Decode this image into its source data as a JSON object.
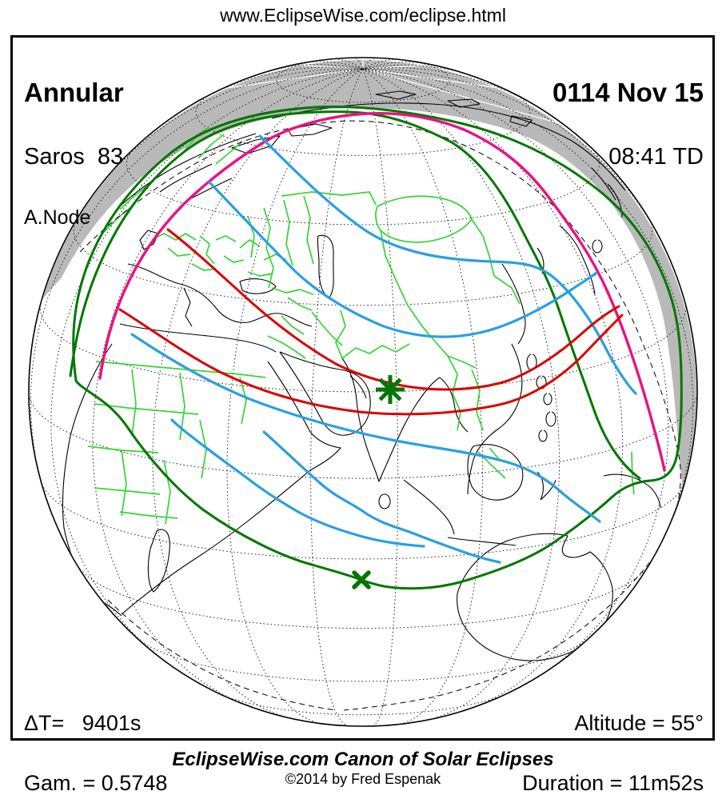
{
  "header": {
    "url": "www.EclipseWise.com/eclipse.html"
  },
  "card": {
    "eclipse_type": "Annular",
    "saros": "Saros  83",
    "node": "A.Node",
    "date": "0114 Nov 15",
    "time": "08:41 TD",
    "delta_t": "ΔT=   9401s",
    "gamma": "Gam. = 0.5748",
    "altitude": "Altitude = 55°",
    "duration": "Duration = 11m52s"
  },
  "footer": {
    "title": "EclipseWise.com Canon of Solar Eclipses",
    "copyright": "©2014 by Fred Espenak"
  },
  "map": {
    "colors": {
      "annular_path_red": "#dc0000",
      "max_eclipse_blue": "#29a0e0",
      "penumbra_limit_magenta": "#ed1080",
      "rise_set_limit_green": "#007700",
      "country_border_green": "#35d435",
      "coastline_black": "#000000",
      "night_region_gray": "#b9b9b9",
      "graticule_black": "#000000",
      "frame_black": "#000000"
    },
    "markers": {
      "greatest_eclipse": "star",
      "sub_solar_point": "x"
    }
  }
}
